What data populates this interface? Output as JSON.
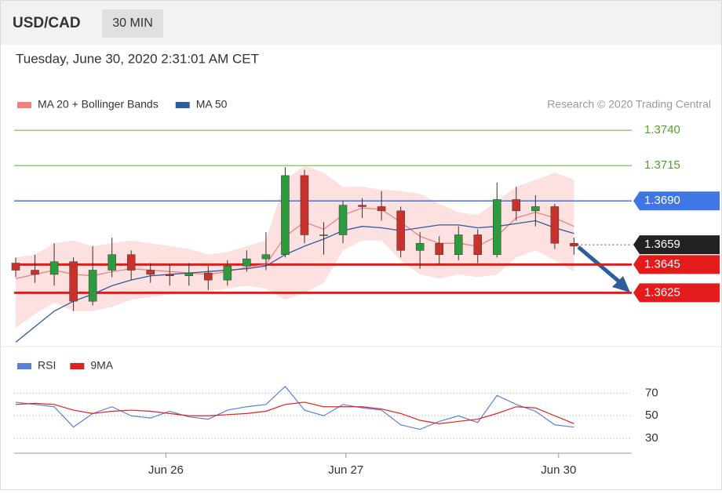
{
  "header": {
    "symbol": "USD/CAD",
    "timeframe": "30 MIN",
    "timestamp": "Tuesday, June 30, 2020 2:31:01 AM CET",
    "copyright": "Research © 2020 Trading Central"
  },
  "chart_data": [
    {
      "type": "candlestick",
      "x": [
        0,
        1,
        2,
        3,
        4,
        5,
        6,
        7,
        8,
        9,
        10,
        11,
        12,
        13,
        14,
        15,
        16,
        17,
        18,
        19,
        20,
        21,
        22,
        23,
        24,
        25,
        26,
        27,
        28,
        29
      ],
      "xlim": [
        0,
        32
      ],
      "ylim": [
        1.3588,
        1.3749
      ],
      "up_color": "#2e9a3e",
      "down_color": "#c8322b",
      "ohlc": {
        "open": [
          1.3646,
          1.3641,
          1.3638,
          1.3647,
          1.3619,
          1.3641,
          1.3652,
          1.3641,
          1.3638,
          1.3637,
          1.3639,
          1.3634,
          1.3644,
          1.3649,
          1.3652,
          1.3708,
          1.3666,
          1.3666,
          1.3687,
          1.3686,
          1.3683,
          1.3655,
          1.366,
          1.3652,
          1.3666,
          1.3652,
          1.3691,
          1.3683,
          1.3686,
          1.366
        ],
        "high": [
          1.365,
          1.3652,
          1.366,
          1.365,
          1.3658,
          1.3664,
          1.3655,
          1.3646,
          1.3645,
          1.3646,
          1.3644,
          1.3648,
          1.3655,
          1.3668,
          1.3714,
          1.3712,
          1.3675,
          1.369,
          1.3692,
          1.3697,
          1.3686,
          1.3668,
          1.3665,
          1.3672,
          1.367,
          1.3703,
          1.37,
          1.3694,
          1.3688,
          1.3664
        ],
        "low": [
          1.3636,
          1.3632,
          1.363,
          1.3612,
          1.3616,
          1.3636,
          1.3634,
          1.3632,
          1.363,
          1.363,
          1.3627,
          1.363,
          1.364,
          1.3641,
          1.365,
          1.366,
          1.3652,
          1.366,
          1.3678,
          1.3676,
          1.365,
          1.3642,
          1.3645,
          1.3648,
          1.3646,
          1.365,
          1.3676,
          1.3672,
          1.3656,
          1.3652
        ],
        "close": [
          1.3641,
          1.3638,
          1.3647,
          1.3619,
          1.3641,
          1.3652,
          1.3641,
          1.3638,
          1.3637,
          1.3639,
          1.3634,
          1.3644,
          1.3649,
          1.3652,
          1.3708,
          1.3666,
          1.3666,
          1.3687,
          1.3686,
          1.3683,
          1.3655,
          1.366,
          1.3652,
          1.3666,
          1.3652,
          1.3691,
          1.3683,
          1.3686,
          1.366,
          1.3658
        ]
      },
      "series": [
        {
          "name": "MA 20 + Bollinger Bands",
          "color": "#f08080",
          "band_color": "#fde0e0",
          "values": [
            1.3635,
            1.3638,
            1.3641,
            1.3638,
            1.3637,
            1.364,
            1.3642,
            1.3641,
            1.364,
            1.3639,
            1.3638,
            1.364,
            1.3643,
            1.3645,
            1.3665,
            1.3675,
            1.367,
            1.368,
            1.3685,
            1.3684,
            1.3675,
            1.3665,
            1.366,
            1.366,
            1.3658,
            1.3665,
            1.3678,
            1.3682,
            1.3678,
            1.3672
          ],
          "upper": [
            1.365,
            1.3652,
            1.366,
            1.3662,
            1.3658,
            1.366,
            1.3662,
            1.366,
            1.3658,
            1.3656,
            1.3652,
            1.3654,
            1.3658,
            1.3662,
            1.3705,
            1.3715,
            1.371,
            1.37,
            1.37,
            1.3698,
            1.3697,
            1.3695,
            1.3688,
            1.3682,
            1.368,
            1.369,
            1.37,
            1.3705,
            1.371,
            1.3705
          ],
          "lower": [
            1.36,
            1.361,
            1.3618,
            1.3612,
            1.3612,
            1.3615,
            1.362,
            1.3622,
            1.3624,
            1.3625,
            1.3626,
            1.3628,
            1.363,
            1.3628,
            1.362,
            1.3625,
            1.3632,
            1.3655,
            1.3662,
            1.3662,
            1.3648,
            1.3638,
            1.3635,
            1.3638,
            1.3636,
            1.3638,
            1.365,
            1.3655,
            1.3648,
            1.364
          ]
        },
        {
          "name": "MA 50",
          "color": "#2e5c9e",
          "values": [
            1.359,
            1.3601,
            1.3612,
            1.3619,
            1.3624,
            1.363,
            1.3634,
            1.3637,
            1.3638,
            1.3639,
            1.364,
            1.3641,
            1.3642,
            1.3644,
            1.3652,
            1.3658,
            1.3663,
            1.3669,
            1.3672,
            1.3671,
            1.3669,
            1.3671,
            1.3673,
            1.3673,
            1.3671,
            1.3672,
            1.3674,
            1.3676,
            1.3671,
            1.3667
          ]
        }
      ],
      "levels": [
        {
          "value": 1.374,
          "label": "1.3740",
          "color": "#93cc72",
          "text_color": "#55a02a",
          "tag": false
        },
        {
          "value": 1.3715,
          "color": "#93cc72",
          "text_color": "#55a02a",
          "tag": false
        },
        {
          "value": 1.369,
          "label": "1.3690",
          "color": "#3f76e4",
          "text_color": "#ffffff",
          "tag": true
        },
        {
          "value": 1.3659,
          "color": "#222222",
          "text_color": "#ffffff",
          "tag": true,
          "dotted": true
        },
        {
          "value": 1.3645,
          "color": "#e31b1b",
          "text_color": "#ffffff",
          "tag": true
        },
        {
          "value": 1.3625,
          "color": "#e31b1b",
          "text_color": "#ffffff",
          "tag": true
        }
      ]
    },
    {
      "type": "line",
      "x": [
        0,
        1,
        2,
        3,
        4,
        5,
        6,
        7,
        8,
        9,
        10,
        11,
        12,
        13,
        14,
        15,
        16,
        17,
        18,
        19,
        20,
        21,
        22,
        23,
        24,
        25,
        26,
        27,
        28,
        29
      ],
      "xlim": [
        0,
        32
      ],
      "xticks": [
        {
          "value": 7.8,
          "label": "Jun 26"
        },
        {
          "value": 17.15,
          "label": "Jun 27"
        },
        {
          "value": 28.2,
          "label": "Jun 30"
        }
      ],
      "ylim": [
        20,
        80
      ],
      "yticks": [
        30,
        50,
        70
      ],
      "series": [
        {
          "name": "RSI",
          "color": "#5b80dc",
          "values": [
            62,
            60,
            58,
            40,
            52,
            58,
            50,
            48,
            54,
            49,
            47,
            55,
            58,
            60,
            76,
            55,
            50,
            60,
            57,
            55,
            42,
            38,
            45,
            50,
            44,
            68,
            60,
            54,
            42,
            40
          ]
        },
        {
          "name": "9MA",
          "color": "#e02020",
          "values": [
            60,
            61,
            60,
            55,
            52,
            54,
            55,
            54,
            52,
            50,
            50,
            51,
            52,
            54,
            60,
            62,
            58,
            58,
            58,
            56,
            52,
            46,
            43,
            45,
            47,
            52,
            58,
            57,
            50,
            43
          ]
        }
      ]
    }
  ]
}
